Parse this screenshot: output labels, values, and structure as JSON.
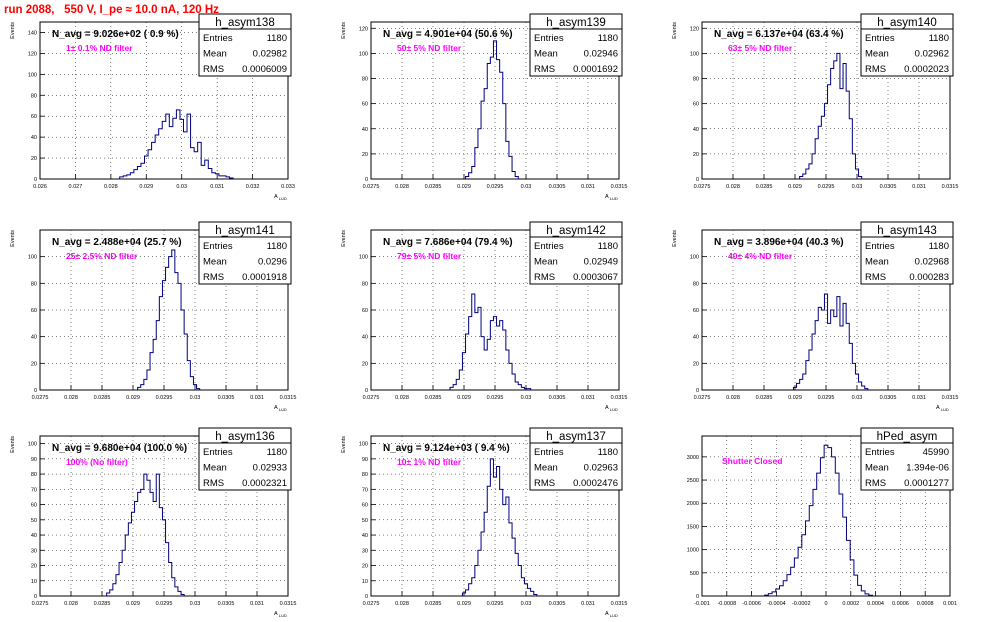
{
  "run_header": "run 2088,   550 V, I_pe ≈ 10.0 nA, 120 Hz",
  "colors": {
    "hist": "#000080",
    "annot": "#000000",
    "filter": "#ff00ff",
    "header": "#ff0000",
    "grid": "#000000"
  },
  "chart_data": [
    {
      "type": "histogram",
      "name": "h_asym138",
      "title": "",
      "xlabel": "A_{LUD}",
      "ylabel": "Events",
      "xlim": [
        0.026,
        0.033
      ],
      "ylim": [
        0,
        150
      ],
      "xticks": [
        "0.026",
        "0.027",
        "0.028",
        "0.029",
        "0.03",
        "0.031",
        "0.032",
        "0.033"
      ],
      "xtick_values": [
        0.026,
        0.027,
        0.028,
        0.029,
        0.03,
        0.031,
        0.032,
        0.033
      ],
      "yticks": [
        "0",
        "20",
        "40",
        "60",
        "80",
        "100",
        "120",
        "140"
      ],
      "ytick_values": [
        0,
        20,
        40,
        60,
        80,
        100,
        120,
        140
      ],
      "annotation": "N_avg = 9.026e+02 ( 0.9 %)",
      "filter_label": "1± 0.1% ND filter",
      "stats": {
        "Entries": "1180",
        "Mean": "0.02982",
        "RMS": "0.0006009"
      },
      "bins_x": [
        0.0283,
        0.0284,
        0.0285,
        0.0286,
        0.0287,
        0.0288,
        0.0289,
        0.029,
        0.0291,
        0.0292,
        0.0293,
        0.0294,
        0.0295,
        0.0296,
        0.0297,
        0.0298,
        0.0299,
        0.03,
        0.0301,
        0.0302,
        0.0303,
        0.0304,
        0.0305,
        0.0306,
        0.0307,
        0.0308,
        0.0309,
        0.031,
        0.0311,
        0.0312,
        0.0313,
        0.0314
      ],
      "bins_y": [
        2,
        3,
        4,
        6,
        9,
        12,
        15,
        22,
        28,
        35,
        42,
        48,
        55,
        62,
        50,
        58,
        66,
        57,
        45,
        62,
        30,
        26,
        35,
        13,
        18,
        10,
        6,
        5,
        3,
        3,
        2,
        1
      ]
    },
    {
      "type": "histogram",
      "name": "h_asym139",
      "title": "",
      "xlabel": "A_{LUD}",
      "ylabel": "Events",
      "xlim": [
        0.0275,
        0.0315
      ],
      "ylim": [
        0,
        125
      ],
      "xticks": [
        "0.0275",
        "0.028",
        "0.0285",
        "0.029",
        "0.0295",
        "0.03",
        "0.0305",
        "0.031",
        "0.0315"
      ],
      "xtick_values": [
        0.0275,
        0.028,
        0.0285,
        0.029,
        0.0295,
        0.03,
        0.0305,
        0.031,
        0.0315
      ],
      "yticks": [
        "0",
        "20",
        "40",
        "60",
        "80",
        "100",
        "120"
      ],
      "ytick_values": [
        0,
        20,
        40,
        60,
        80,
        100,
        120
      ],
      "annotation": "N_avg = 4.901e+04 (50.6 %)",
      "filter_label": "50± 5% ND filter",
      "stats": {
        "Entries": "1180",
        "Mean": "0.02946",
        "RMS": "0.0001692"
      },
      "bins_x": [
        0.02905,
        0.0291,
        0.02915,
        0.0292,
        0.02925,
        0.0293,
        0.02935,
        0.0294,
        0.02945,
        0.0295,
        0.02955,
        0.0296,
        0.02965,
        0.0297,
        0.02975,
        0.0298,
        0.02985
      ],
      "bins_y": [
        2,
        5,
        10,
        25,
        40,
        62,
        72,
        92,
        97,
        110,
        95,
        85,
        60,
        30,
        18,
        6,
        2
      ]
    },
    {
      "type": "histogram",
      "name": "h_asym140",
      "title": "",
      "xlabel": "",
      "ylabel": "Events",
      "xlim": [
        0.0275,
        0.0315
      ],
      "ylim": [
        0,
        125
      ],
      "xticks": [
        "0.0275",
        "0.028",
        "0.0285",
        "0.029",
        "0.0295",
        "0.03",
        "0.0305",
        "0.031",
        "0.0315"
      ],
      "xtick_values": [
        0.0275,
        0.028,
        0.0285,
        0.029,
        0.0295,
        0.03,
        0.0305,
        0.031,
        0.0315
      ],
      "yticks": [
        "0",
        "20",
        "40",
        "60",
        "80",
        "100",
        "120"
      ],
      "ytick_values": [
        0,
        20,
        40,
        60,
        80,
        100,
        120
      ],
      "annotation": "N_avg = 6.137e+04 (63.4 %)",
      "filter_label": "63± 5% ND filter",
      "stats": {
        "Entries": "1180",
        "Mean": "0.02962",
        "RMS": "0.0002023"
      },
      "bins_x": [
        0.0291,
        0.02915,
        0.0292,
        0.02925,
        0.0293,
        0.02935,
        0.0294,
        0.02945,
        0.0295,
        0.02955,
        0.0296,
        0.02965,
        0.0297,
        0.02975,
        0.0298,
        0.02985,
        0.0299,
        0.02995,
        0.03,
        0.03005
      ],
      "bins_y": [
        2,
        4,
        8,
        12,
        20,
        32,
        42,
        50,
        60,
        75,
        88,
        94,
        100,
        72,
        92,
        70,
        48,
        20,
        8,
        2
      ]
    },
    {
      "type": "histogram",
      "name": "h_asym141",
      "title": "",
      "xlabel": "A_{LUD}",
      "ylabel": "Events",
      "xlim": [
        0.0275,
        0.0315
      ],
      "ylim": [
        0,
        120
      ],
      "xticks": [
        "0.0275",
        "0.028",
        "0.0285",
        "0.029",
        "0.0295",
        "0.03",
        "0.0305",
        "0.031",
        "0.0315"
      ],
      "xtick_values": [
        0.0275,
        0.028,
        0.0285,
        0.029,
        0.0295,
        0.03,
        0.0305,
        0.031,
        0.0315
      ],
      "yticks": [
        "0",
        "20",
        "40",
        "60",
        "80",
        "100"
      ],
      "ytick_values": [
        0,
        20,
        40,
        60,
        80,
        100
      ],
      "annotation": "N_avg = 2.488e+04 (25.7 %)",
      "filter_label": "25± 2.5% ND filter",
      "stats": {
        "Entries": "1180",
        "Mean": "0.0296",
        "RMS": "0.0001918"
      },
      "bins_x": [
        0.0291,
        0.02915,
        0.0292,
        0.02925,
        0.0293,
        0.02935,
        0.0294,
        0.02945,
        0.0295,
        0.02955,
        0.0296,
        0.02965,
        0.0297,
        0.02975,
        0.0298,
        0.02985,
        0.0299,
        0.02995,
        0.03,
        0.03005
      ],
      "bins_y": [
        2,
        4,
        8,
        15,
        28,
        38,
        52,
        70,
        82,
        92,
        100,
        105,
        88,
        80,
        60,
        42,
        22,
        10,
        4,
        1
      ]
    },
    {
      "type": "histogram",
      "name": "h_asym142",
      "title": "",
      "xlabel": "A_{LUD}",
      "ylabel": "Events",
      "xlim": [
        0.0275,
        0.0315
      ],
      "ylim": [
        0,
        120
      ],
      "xticks": [
        "0.0275",
        "0.028",
        "0.0285",
        "0.029",
        "0.0295",
        "0.03",
        "0.0305",
        "0.031",
        "0.0315"
      ],
      "xtick_values": [
        0.0275,
        0.028,
        0.0285,
        0.029,
        0.0295,
        0.03,
        0.0305,
        0.031,
        0.0315
      ],
      "yticks": [
        "0",
        "20",
        "40",
        "60",
        "80",
        "100"
      ],
      "ytick_values": [
        0,
        20,
        40,
        60,
        80,
        100
      ],
      "annotation": "N_avg = 7.686e+04 (79.4 %)",
      "filter_label": "79± 5% ND filter",
      "stats": {
        "Entries": "1180",
        "Mean": "0.02949",
        "RMS": "0.0003067"
      },
      "bins_x": [
        0.0288,
        0.02885,
        0.0289,
        0.02895,
        0.029,
        0.02905,
        0.0291,
        0.02915,
        0.0292,
        0.02925,
        0.0293,
        0.02935,
        0.0294,
        0.02945,
        0.0295,
        0.02955,
        0.0296,
        0.02965,
        0.0297,
        0.02975,
        0.0298,
        0.02985,
        0.0299,
        0.02995,
        0.03,
        0.03005
      ],
      "bins_y": [
        2,
        4,
        8,
        15,
        28,
        42,
        55,
        72,
        58,
        62,
        40,
        30,
        38,
        52,
        55,
        48,
        52,
        45,
        30,
        20,
        12,
        6,
        4,
        2,
        1,
        1
      ]
    },
    {
      "type": "histogram",
      "name": "h_asym143",
      "title": "",
      "xlabel": "A_{LUD}",
      "ylabel": "Events",
      "xlim": [
        0.0275,
        0.0315
      ],
      "ylim": [
        0,
        120
      ],
      "xticks": [
        "0.0275",
        "0.028",
        "0.0285",
        "0.029",
        "0.0295",
        "0.03",
        "0.0305",
        "0.031",
        "0.0315"
      ],
      "xtick_values": [
        0.0275,
        0.028,
        0.0285,
        0.029,
        0.0295,
        0.03,
        0.0305,
        0.031,
        0.0315
      ],
      "yticks": [
        "0",
        "20",
        "40",
        "60",
        "80",
        "100"
      ],
      "ytick_values": [
        0,
        20,
        40,
        60,
        80,
        100
      ],
      "annotation": "N_avg = 3.896e+04 (40.3 %)",
      "filter_label": "40± 4% ND filter",
      "stats": {
        "Entries": "1180",
        "Mean": "0.02968",
        "RMS": "0.000283"
      },
      "bins_x": [
        0.029,
        0.02905,
        0.0291,
        0.02915,
        0.0292,
        0.02925,
        0.0293,
        0.02935,
        0.0294,
        0.02945,
        0.0295,
        0.02955,
        0.0296,
        0.02965,
        0.0297,
        0.02975,
        0.0298,
        0.02985,
        0.0299,
        0.02995,
        0.03,
        0.03005,
        0.0301,
        0.03015
      ],
      "bins_y": [
        2,
        5,
        8,
        12,
        22,
        30,
        42,
        52,
        62,
        60,
        72,
        50,
        60,
        55,
        70,
        48,
        65,
        50,
        35,
        20,
        12,
        6,
        3,
        1
      ]
    },
    {
      "type": "histogram",
      "name": "h_asym136",
      "title": "",
      "xlabel": "A_{LUD}",
      "ylabel": "Events",
      "xlim": [
        0.0275,
        0.0315
      ],
      "ylim": [
        0,
        105
      ],
      "xticks": [
        "0.0275",
        "0.028",
        "0.0285",
        "0.029",
        "0.0295",
        "0.03",
        "0.0305",
        "0.031",
        "0.0315"
      ],
      "xtick_values": [
        0.0275,
        0.028,
        0.0285,
        0.029,
        0.0295,
        0.03,
        0.0305,
        0.031,
        0.0315
      ],
      "yticks": [
        "0",
        "10",
        "20",
        "30",
        "40",
        "50",
        "60",
        "70",
        "80",
        "90",
        "100"
      ],
      "ytick_values": [
        0,
        10,
        20,
        30,
        40,
        50,
        60,
        70,
        80,
        90,
        100
      ],
      "annotation": "N_avg = 9.680e+04 (100.0 %)",
      "filter_label": "100% (No filter)",
      "stats": {
        "Entries": "1180",
        "Mean": "0.02933",
        "RMS": "0.0002321"
      },
      "bins_x": [
        0.0286,
        0.02865,
        0.0287,
        0.02875,
        0.0288,
        0.02885,
        0.0289,
        0.02895,
        0.029,
        0.02905,
        0.0291,
        0.02915,
        0.0292,
        0.02925,
        0.0293,
        0.02935,
        0.0294,
        0.02945,
        0.0295,
        0.02955,
        0.0296,
        0.02965,
        0.0297,
        0.02975,
        0.0298
      ],
      "bins_y": [
        2,
        4,
        8,
        14,
        22,
        30,
        40,
        48,
        55,
        62,
        68,
        70,
        80,
        76,
        68,
        62,
        80,
        58,
        50,
        35,
        22,
        12,
        6,
        3,
        1
      ]
    },
    {
      "type": "histogram",
      "name": "h_asym137",
      "title": "",
      "xlabel": "A_{LUD}",
      "ylabel": "Events",
      "xlim": [
        0.0275,
        0.0315
      ],
      "ylim": [
        0,
        105
      ],
      "xticks": [
        "0.0275",
        "0.028",
        "0.0285",
        "0.029",
        "0.0295",
        "0.03",
        "0.0305",
        "0.031",
        "0.0315"
      ],
      "xtick_values": [
        0.0275,
        0.028,
        0.0285,
        0.029,
        0.0295,
        0.03,
        0.0305,
        0.031,
        0.0315
      ],
      "yticks": [
        "0",
        "10",
        "20",
        "30",
        "40",
        "50",
        "60",
        "70",
        "80",
        "90",
        "100"
      ],
      "ytick_values": [
        0,
        10,
        20,
        30,
        40,
        50,
        60,
        70,
        80,
        90,
        100
      ],
      "annotation": "N_avg = 9.124e+03 ( 9.4 %)",
      "filter_label": "10± 1% ND filter",
      "stats": {
        "Entries": "1180",
        "Mean": "0.02963",
        "RMS": "0.0002476"
      },
      "bins_x": [
        0.029,
        0.02905,
        0.0291,
        0.02915,
        0.0292,
        0.02925,
        0.0293,
        0.02935,
        0.0294,
        0.02945,
        0.0295,
        0.02955,
        0.0296,
        0.02965,
        0.0297,
        0.02975,
        0.0298,
        0.02985,
        0.0299,
        0.02995,
        0.03,
        0.03005,
        0.0301,
        0.03015
      ],
      "bins_y": [
        2,
        4,
        8,
        12,
        20,
        30,
        42,
        55,
        72,
        90,
        78,
        85,
        70,
        60,
        65,
        48,
        38,
        28,
        20,
        12,
        8,
        5,
        3,
        1
      ]
    },
    {
      "type": "histogram",
      "name": "hPed_asym",
      "title": "",
      "xlabel": "",
      "ylabel": "",
      "xlim": [
        -0.001,
        0.001
      ],
      "ylim": [
        0,
        3450
      ],
      "xticks": [
        "-0.001",
        "-0.0008",
        "-0.0006",
        "-0.0004",
        "-0.0002",
        "0",
        "0.0002",
        "0.0004",
        "0.0006",
        "0.0008",
        "0.001"
      ],
      "xtick_values": [
        -0.001,
        -0.0008,
        -0.0006,
        -0.0004,
        -0.0002,
        0,
        0.0002,
        0.0004,
        0.0006,
        0.0008,
        0.001
      ],
      "yticks": [
        "0",
        "500",
        "1000",
        "1500",
        "2000",
        "2500",
        "3000"
      ],
      "ytick_values": [
        0,
        500,
        1000,
        1500,
        2000,
        2500,
        3000
      ],
      "annotation": "",
      "filter_label": "Shutter Closed",
      "stats": {
        "Entries": "45990",
        "Mean": "1.394e-06",
        "RMS": "0.0001277"
      },
      "bins_x": [
        -0.00048,
        -0.00045,
        -0.00042,
        -0.00039,
        -0.00036,
        -0.00033,
        -0.0003,
        -0.00027,
        -0.00024,
        -0.00021,
        -0.00018,
        -0.00015,
        -0.00012,
        -9e-05,
        -6e-05,
        -3e-05,
        0,
        3e-05,
        6e-05,
        9e-05,
        0.00012,
        0.00015,
        0.00018,
        0.00021,
        0.00024,
        0.00027,
        0.0003,
        0.00033,
        0.00036
      ],
      "bins_y": [
        20,
        50,
        90,
        150,
        220,
        330,
        460,
        620,
        820,
        1050,
        1320,
        1620,
        1950,
        2300,
        2650,
        2980,
        3250,
        3200,
        3000,
        2650,
        2200,
        1700,
        1200,
        780,
        450,
        230,
        110,
        45,
        15
      ]
    }
  ]
}
